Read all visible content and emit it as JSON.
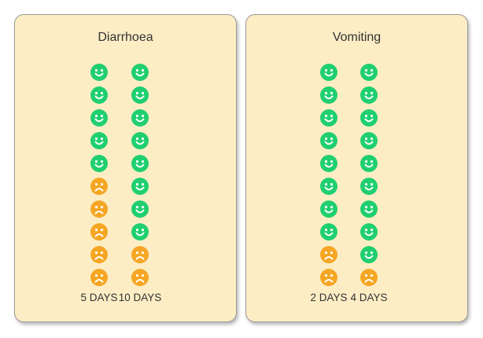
{
  "colors": {
    "happy": "#1fcf70",
    "sad": "#f5a623",
    "card_bg": "#fdedc5"
  },
  "icons": {
    "happy": "happy-face-icon",
    "sad": "sad-face-icon"
  },
  "panels": [
    {
      "title": "Diarrhoea",
      "columns": [
        {
          "label": "5 DAYS",
          "faces": [
            "happy",
            "happy",
            "happy",
            "happy",
            "happy",
            "sad",
            "sad",
            "sad",
            "sad",
            "sad"
          ]
        },
        {
          "label": "10 DAYS",
          "faces": [
            "happy",
            "happy",
            "happy",
            "happy",
            "happy",
            "happy",
            "happy",
            "happy",
            "sad",
            "sad"
          ]
        }
      ]
    },
    {
      "title": "Vomiting",
      "columns": [
        {
          "label": "2 DAYS",
          "faces": [
            "happy",
            "happy",
            "happy",
            "happy",
            "happy",
            "happy",
            "happy",
            "happy",
            "sad",
            "sad"
          ]
        },
        {
          "label": "4 DAYS",
          "faces": [
            "happy",
            "happy",
            "happy",
            "happy",
            "happy",
            "happy",
            "happy",
            "happy",
            "happy",
            "sad"
          ]
        }
      ]
    }
  ]
}
